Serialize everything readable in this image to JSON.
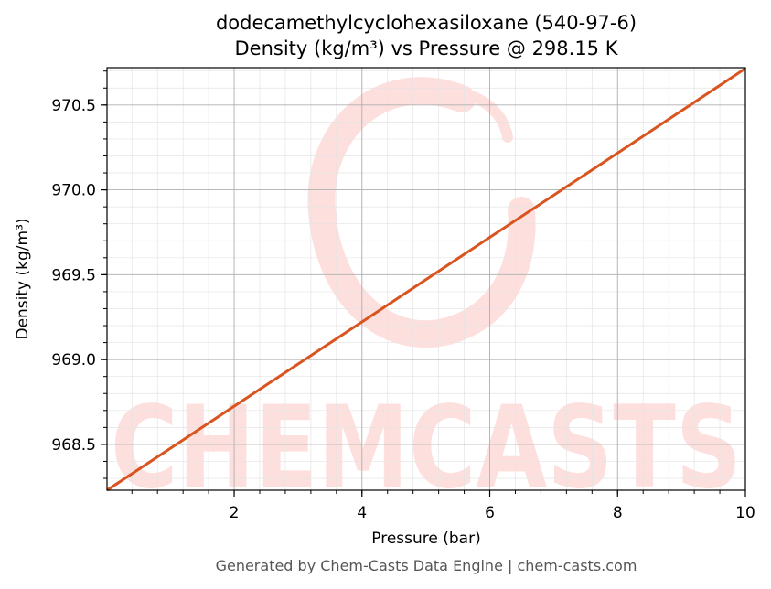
{
  "chart_data": {
    "type": "line",
    "title": "dodecamethylcyclohexasiloxane (540-97-6)",
    "subtitle": "Density (kg/m³) vs Pressure @ 298.15 K",
    "xlabel": "Pressure (bar)",
    "ylabel": "Density (kg/m³)",
    "xlim": [
      0.01,
      10
    ],
    "ylim": [
      968.23,
      970.72
    ],
    "x_ticks": [
      2,
      4,
      6,
      8,
      10
    ],
    "x_tick_labels": [
      "2",
      "4",
      "6",
      "8",
      "10"
    ],
    "y_ticks": [
      968.5,
      969.0,
      969.5,
      970.0,
      970.5
    ],
    "y_tick_labels": [
      "968.5",
      "969.0",
      "969.5",
      "970.0",
      "970.5"
    ],
    "grid": true,
    "series": [
      {
        "color": "#d9541e",
        "x": [
          0.01,
          2,
          4,
          6,
          8,
          10
        ],
        "y": [
          968.23,
          968.725,
          969.222,
          969.72,
          970.217,
          970.715
        ]
      }
    ]
  },
  "watermark": {
    "text": "CHEMCASTS",
    "color": "#fde0dd"
  },
  "footer": "Generated by Chem-Casts Data Engine | chem-casts.com"
}
